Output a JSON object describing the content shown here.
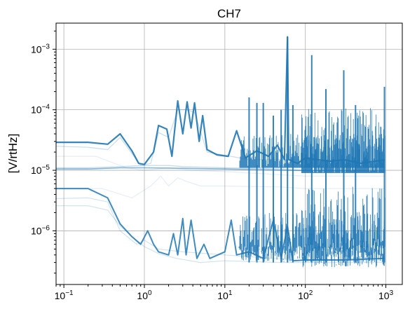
{
  "chart_data": {
    "type": "line",
    "title": "CH7",
    "xlabel": "",
    "ylabel": "[V/rtHz]",
    "xscale": "log",
    "yscale": "log",
    "xlim": [
      0.08,
      1600
    ],
    "ylim": [
      1.3e-07,
      0.0027
    ],
    "grid": true,
    "color": "#1f77b4",
    "x_ticks": [
      {
        "value": 0.1,
        "base": "10",
        "exp": "−1"
      },
      {
        "value": 1,
        "base": "10",
        "exp": "0"
      },
      {
        "value": 10,
        "base": "10",
        "exp": "1"
      },
      {
        "value": 100,
        "base": "10",
        "exp": "2"
      },
      {
        "value": 1000,
        "base": "10",
        "exp": "3"
      }
    ],
    "y_ticks": [
      {
        "value": 1e-06,
        "base": "10",
        "exp": "−6"
      },
      {
        "value": 1e-05,
        "base": "10",
        "exp": "−5"
      },
      {
        "value": 0.0001,
        "base": "10",
        "exp": "−4"
      },
      {
        "value": 0.001,
        "base": "10",
        "exp": "−3"
      }
    ],
    "series": [
      {
        "opacity": 0.9,
        "width": 2.2,
        "points": [
          [
            0.08,
            2.9e-05
          ],
          [
            0.2,
            2.9e-05
          ],
          [
            0.35,
            2.7e-05
          ],
          [
            0.5,
            4e-05
          ],
          [
            0.7,
            2.1e-05
          ],
          [
            0.85,
            1.3e-05
          ],
          [
            1.0,
            1.25e-05
          ],
          [
            1.3,
            2e-05
          ],
          [
            1.5,
            5.5e-05
          ],
          [
            1.9,
            4.8e-05
          ],
          [
            2.2,
            1.7e-05
          ],
          [
            2.6,
            0.00014
          ],
          [
            3.0,
            4e-05
          ],
          [
            3.4,
            0.000135
          ],
          [
            3.8,
            5e-05
          ],
          [
            4.2,
            0.00013
          ],
          [
            4.8,
            3e-05
          ],
          [
            5.3,
            8e-05
          ],
          [
            6.0,
            2.2e-05
          ],
          [
            8.0,
            1.8e-05
          ],
          [
            11,
            1.7e-05
          ],
          [
            14,
            4.5e-05
          ],
          [
            18,
            1.6e-05
          ],
          [
            25,
            2.1e-05
          ],
          [
            35,
            1.7e-05
          ],
          [
            45,
            2.6e-05
          ],
          [
            55,
            1.5e-05
          ],
          [
            60,
            0.0016
          ],
          [
            62,
            1.5e-05
          ],
          [
            80,
            1.3e-05
          ],
          [
            100,
            1.6e-05
          ],
          [
            200,
            1.4e-05
          ],
          [
            300,
            1.5e-05
          ],
          [
            500,
            1.3e-05
          ],
          [
            980,
            1.5e-05
          ]
        ]
      },
      {
        "opacity": 0.25,
        "width": 1.2,
        "points": [
          [
            0.08,
            2.5e-05
          ],
          [
            0.2,
            2.4e-05
          ],
          [
            0.35,
            2.2e-05
          ],
          [
            0.5,
            3.5e-05
          ],
          [
            0.7,
            1.9e-05
          ],
          [
            0.9,
            1.2e-05
          ],
          [
            1.2,
            1.3e-05
          ],
          [
            1.5,
            4.2e-05
          ],
          [
            2.0,
            3.5e-05
          ],
          [
            2.6,
            0.0001
          ],
          [
            3.4,
            0.0001
          ],
          [
            4.2,
            9e-05
          ],
          [
            6.0,
            2e-05
          ],
          [
            20,
            1.5e-05
          ],
          [
            100,
            1.5e-05
          ],
          [
            980,
            1.4e-05
          ]
        ]
      },
      {
        "opacity": 0.25,
        "width": 1.4,
        "points": [
          [
            0.08,
            1.1e-05
          ],
          [
            0.2,
            1.1e-05
          ],
          [
            0.5,
            1.15e-05
          ],
          [
            1.0,
            1.2e-05
          ],
          [
            2.0,
            1.2e-05
          ],
          [
            3.0,
            1.15e-05
          ],
          [
            10,
            1.1e-05
          ],
          [
            50,
            1.05e-05
          ],
          [
            100,
            1e-05
          ],
          [
            300,
            1e-05
          ],
          [
            980,
            1e-05
          ]
        ]
      },
      {
        "opacity": 0.55,
        "width": 1.6,
        "points": [
          [
            0.08,
            1.05e-05
          ],
          [
            0.2,
            1.05e-05
          ],
          [
            0.5,
            1.1e-05
          ],
          [
            1.0,
            1.1e-05
          ],
          [
            3.0,
            1.08e-05
          ],
          [
            10,
            1.05e-05
          ],
          [
            60,
            1e-05
          ],
          [
            200,
            9.8e-06
          ],
          [
            980,
            9.6e-06
          ]
        ]
      },
      {
        "opacity": 0.12,
        "width": 1.2,
        "points": [
          [
            0.08,
            1.7e-05
          ],
          [
            0.25,
            1.7e-05
          ],
          [
            0.6,
            1.1e-05
          ],
          [
            1.0,
            1e-05
          ],
          [
            2.0,
            1.1e-05
          ],
          [
            4.0,
            1e-05
          ],
          [
            10,
            9.5e-06
          ],
          [
            30,
            8.8e-06
          ],
          [
            100,
            8e-06
          ],
          [
            980,
            8e-06
          ]
        ]
      },
      {
        "opacity": 0.12,
        "width": 1.2,
        "points": [
          [
            0.08,
            5e-06
          ],
          [
            0.3,
            5e-06
          ],
          [
            0.7,
            3.5e-06
          ],
          [
            1.2,
            5.5e-06
          ],
          [
            1.6,
            8e-06
          ],
          [
            2.0,
            5.5e-06
          ],
          [
            2.6,
            7.5e-06
          ],
          [
            3.4,
            6.5e-06
          ],
          [
            5.0,
            5.5e-06
          ],
          [
            10,
            5.5e-06
          ],
          [
            50,
            5.3e-06
          ],
          [
            100,
            5e-06
          ],
          [
            980,
            5e-06
          ]
        ]
      },
      {
        "opacity": 0.85,
        "width": 2.0,
        "points": [
          [
            0.08,
            5e-06
          ],
          [
            0.2,
            5e-06
          ],
          [
            0.35,
            3.5e-06
          ],
          [
            0.5,
            1.3e-06
          ],
          [
            0.7,
            8e-07
          ],
          [
            0.9,
            6e-07
          ],
          [
            1.1,
            1e-06
          ],
          [
            1.3,
            6e-07
          ],
          [
            1.5,
            4.5e-07
          ],
          [
            2.0,
            4e-07
          ],
          [
            2.3,
            9e-07
          ],
          [
            2.6,
            4e-07
          ],
          [
            3.0,
            1.6e-06
          ],
          [
            3.3,
            4e-07
          ],
          [
            3.8,
            1.5e-06
          ],
          [
            4.5,
            3.5e-07
          ],
          [
            5.5,
            6e-07
          ],
          [
            6.5,
            3.5e-07
          ],
          [
            10,
            4.5e-07
          ],
          [
            12,
            1.5e-06
          ],
          [
            14,
            4e-07
          ],
          [
            20,
            4.5e-07
          ],
          [
            30,
            3.5e-07
          ],
          [
            40,
            1.5e-06
          ],
          [
            50,
            3.5e-07
          ],
          [
            60,
            1.2e-06
          ],
          [
            70,
            3.2e-07
          ],
          [
            100,
            3.3e-07
          ],
          [
            300,
            3.3e-07
          ],
          [
            980,
            3.5e-07
          ]
        ]
      },
      {
        "opacity": 0.2,
        "width": 1.2,
        "points": [
          [
            0.08,
            2.6e-06
          ],
          [
            0.2,
            2.6e-06
          ],
          [
            0.35,
            2.2e-06
          ],
          [
            0.5,
            1.2e-06
          ],
          [
            0.8,
            7e-07
          ],
          [
            1.0,
            5.5e-07
          ],
          [
            1.5,
            4.2e-07
          ],
          [
            2.5,
            3.5e-07
          ],
          [
            5.0,
            3e-07
          ],
          [
            10,
            3.2e-07
          ],
          [
            50,
            3e-07
          ],
          [
            100,
            3e-07
          ],
          [
            980,
            3e-07
          ]
        ]
      },
      {
        "opacity": 0.2,
        "width": 1.2,
        "points": [
          [
            0.08,
            3.4e-06
          ],
          [
            0.2,
            3.5e-06
          ],
          [
            0.35,
            3e-06
          ],
          [
            0.5,
            1e-06
          ],
          [
            0.8,
            6e-07
          ],
          [
            1.0,
            7e-07
          ],
          [
            1.5,
            5e-07
          ],
          [
            3.0,
            4.5e-07
          ],
          [
            10,
            4e-07
          ],
          [
            100,
            3.2e-07
          ],
          [
            980,
            3.2e-07
          ]
        ]
      }
    ],
    "spike_bands": [
      {
        "x_from": 15,
        "x_to": 980,
        "upper_low": 1.1e-05,
        "upper_high": 4e-05,
        "lower_low": 3e-07,
        "lower_high": 2e-06
      },
      {
        "x_from": 90,
        "x_to": 980,
        "upper_low": 9e-06,
        "upper_high": 0.00011,
        "lower_low": 2.5e-07,
        "lower_high": 6e-06
      }
    ],
    "spikes": [
      {
        "x": 60,
        "y": 0.0016
      },
      {
        "x": 120,
        "y": 0.0008
      },
      {
        "x": 180,
        "y": 0.00022
      },
      {
        "x": 300,
        "y": 0.00045
      },
      {
        "x": 420,
        "y": 0.00012
      },
      {
        "x": 960,
        "y": 0.00024
      },
      {
        "x": 20,
        "y": 0.00016
      },
      {
        "x": 25,
        "y": 0.00013
      },
      {
        "x": 30,
        "y": 0.00013
      },
      {
        "x": 40,
        "y": 8e-05
      },
      {
        "x": 50,
        "y": 0.0001
      },
      {
        "x": 70,
        "y": 0.00012
      }
    ]
  }
}
